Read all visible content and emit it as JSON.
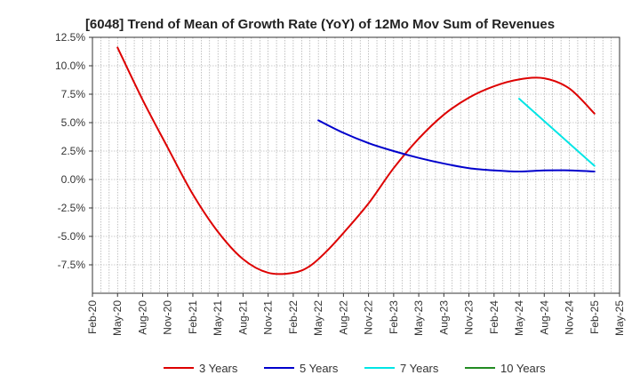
{
  "chart_data": {
    "type": "line",
    "title": "[6048]  Trend of Mean of Growth Rate (YoY) of 12Mo Mov Sum of Revenues",
    "xlabel": "",
    "ylabel": "",
    "ylim": [
      -10,
      12.5
    ],
    "yticks": [
      12.5,
      10.0,
      7.5,
      5.0,
      2.5,
      0.0,
      -2.5,
      -5.0,
      -7.5
    ],
    "ytick_labels": [
      "12.5%",
      "10.0%",
      "7.5%",
      "5.0%",
      "2.5%",
      "0.0%",
      "-2.5%",
      "-5.0%",
      "-7.5%"
    ],
    "x_tick_labels": [
      "Feb-20",
      "May-20",
      "Aug-20",
      "Nov-20",
      "Feb-21",
      "May-21",
      "Aug-21",
      "Nov-21",
      "Feb-22",
      "May-22",
      "Aug-22",
      "Nov-22",
      "Feb-23",
      "May-23",
      "Aug-23",
      "Nov-23",
      "Feb-24",
      "May-24",
      "Aug-24",
      "Nov-24",
      "Feb-25",
      "May-25"
    ],
    "x_units": "months since Feb-20",
    "xlim": [
      0,
      63
    ],
    "grid": true,
    "legend_position": "bottom",
    "series": [
      {
        "name": "3 Years",
        "color": "#dd0000",
        "x": [
          3,
          6,
          9,
          12,
          15,
          18,
          21,
          24,
          26,
          28,
          30,
          33,
          36,
          39,
          42,
          45,
          48,
          51,
          54,
          57,
          60
        ],
        "values": [
          11.6,
          7.0,
          2.8,
          -1.3,
          -4.6,
          -7.0,
          -8.2,
          -8.2,
          -7.6,
          -6.3,
          -4.7,
          -2.1,
          1.0,
          3.6,
          5.7,
          7.2,
          8.2,
          8.8,
          8.9,
          8.0,
          5.8
        ]
      },
      {
        "name": "5 Years",
        "color": "#0000cc",
        "x": [
          27,
          30,
          33,
          36,
          39,
          42,
          45,
          48,
          51,
          54,
          57,
          60
        ],
        "values": [
          5.2,
          4.1,
          3.2,
          2.5,
          1.9,
          1.4,
          1.0,
          0.8,
          0.7,
          0.8,
          0.8,
          0.7
        ]
      },
      {
        "name": "7 Years",
        "color": "#00e5e5",
        "x": [
          51,
          60
        ],
        "values": [
          7.1,
          1.2
        ]
      },
      {
        "name": "10 Years",
        "color": "#228b22",
        "x": [],
        "values": []
      }
    ]
  }
}
